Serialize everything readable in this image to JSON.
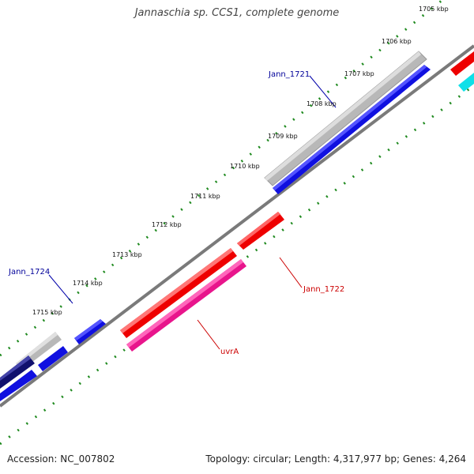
{
  "title": "Jannaschia sp. CCS1, complete genome",
  "footer": {
    "accession": "Accession: NC_007802",
    "summary": "Topology: circular; Length: 4,317,977 bp; Genes: 4,264"
  },
  "ticks": [
    "1705 kbp",
    "1706 kbp",
    "1707 kbp",
    "1708 kbp",
    "1709 kbp",
    "1710 kbp",
    "1711 kbp",
    "1712 kbp",
    "1713 kbp",
    "1714 kbp",
    "1715 kbp"
  ],
  "gene_labels": {
    "jann_1721": "Jann_1721",
    "jann_1724": "Jann_1724",
    "jann_1722": "Jann_1722",
    "uvra": "uvrA"
  },
  "colors": {
    "backbone": "#7a7a7a",
    "tick_dots": "#1f8a1f",
    "gene_blue": "#1010e0",
    "gene_gray": "#b8b8b8",
    "gene_red": "#ee0000",
    "gene_pink": "#e8158c",
    "gene_navy": "#10106e",
    "gene_cyan": "#10e0e8",
    "label_blue": "#000099",
    "label_red": "#cc0000"
  }
}
